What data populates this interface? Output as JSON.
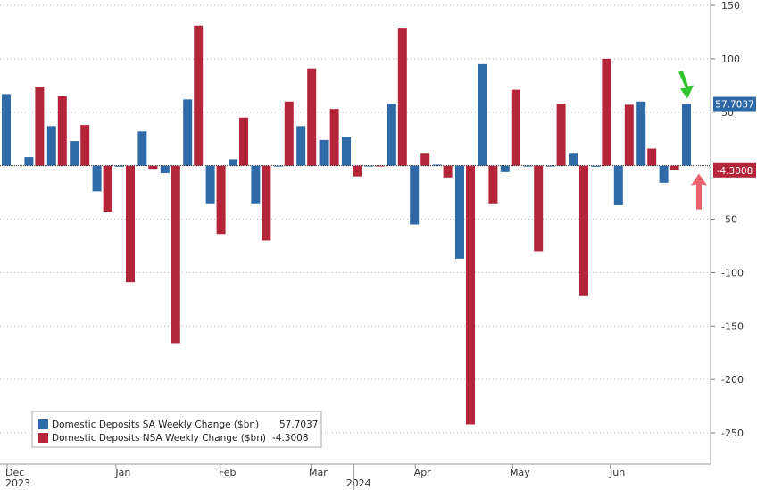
{
  "chart_data": {
    "type": "bar",
    "ylim": [
      -275,
      155
    ],
    "yticks": [
      150,
      100,
      50,
      -50,
      -100,
      -150,
      -200,
      -250
    ],
    "grid": true,
    "legend_position": "bottom-left",
    "months": [
      {
        "label": "Dec",
        "year": "2023",
        "week": 0
      },
      {
        "label": "Jan",
        "week": 4.8
      },
      {
        "label": "Feb",
        "week": 9.4
      },
      {
        "label": "Mar",
        "week": 13.4
      },
      {
        "label": "2024",
        "week": 15.5,
        "is_year": true
      },
      {
        "label": "Apr",
        "week": 18.0
      },
      {
        "label": "May",
        "week": 22.3
      },
      {
        "label": "Jun",
        "week": 26.6
      }
    ],
    "series": [
      {
        "name": "Domestic Deposits SA Weekly Change ($bn)",
        "last_value": "57.7037",
        "color": "#2f6aa8",
        "values": [
          67,
          8,
          37,
          23,
          -24,
          -1,
          32,
          -7,
          62,
          -36,
          6,
          -36,
          0,
          37,
          24,
          27,
          0,
          58,
          -55,
          1,
          -87,
          95,
          -6,
          0,
          0,
          12,
          -1,
          -37,
          60,
          -16,
          57.7037
        ]
      },
      {
        "name": "Domestic Deposits NSA Weekly Change ($bn)",
        "last_value": "-4.3008",
        "color": "#b3263a",
        "values": [
          null,
          74,
          65,
          38,
          -43,
          -109,
          -3,
          -166,
          131,
          -64,
          45,
          -70,
          60,
          91,
          53,
          -10,
          0,
          129,
          12,
          -11,
          -242,
          -36,
          71,
          -80,
          58,
          -122,
          100,
          57,
          16,
          -4.3008,
          null
        ]
      }
    ],
    "annotations": [
      {
        "name": "up-arrow",
        "color": "#2ec52e",
        "series": 0
      },
      {
        "name": "down-arrow",
        "color": "#e8636e",
        "series": 1
      }
    ]
  }
}
